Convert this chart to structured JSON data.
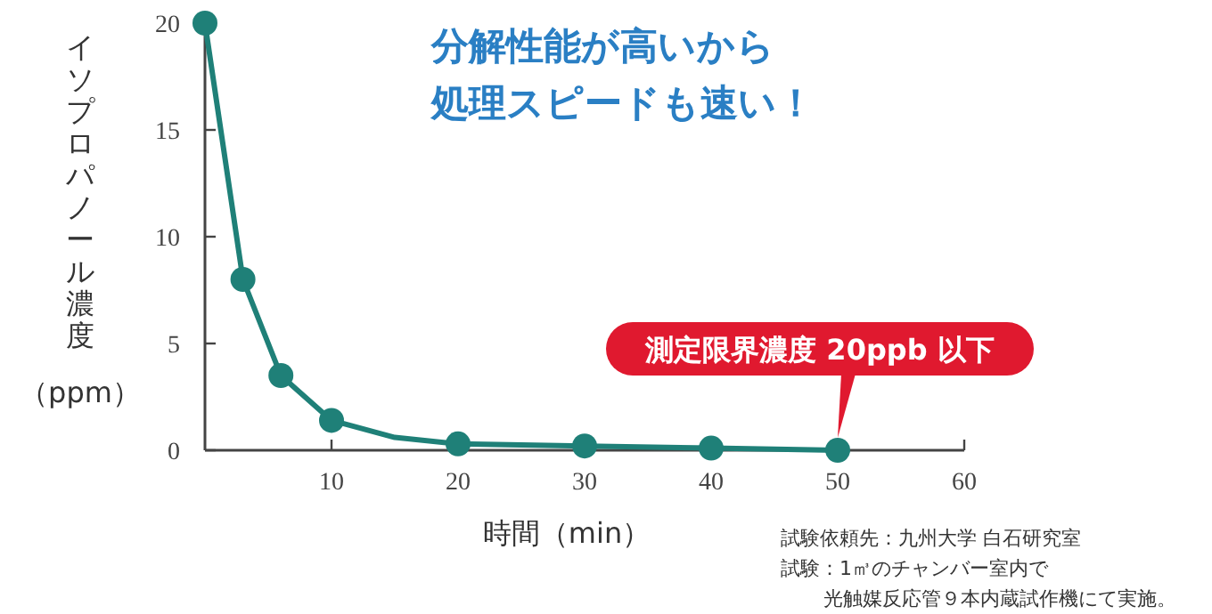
{
  "chart_data": {
    "type": "line",
    "title": "分解性能が高いから",
    "subtitle": "処理スピードも速い！",
    "xlabel": "時間（min）",
    "ylabel": "イソプロパノール濃度（ppm）",
    "xlim": [
      0,
      60
    ],
    "xticks": [
      10,
      20,
      30,
      40,
      50,
      60
    ],
    "ylim": [
      0,
      20
    ],
    "yticks": [
      0,
      5,
      10,
      15,
      20
    ],
    "grid": false,
    "series": [
      {
        "color": "#1f8078",
        "marker": "none",
        "x": [
          0,
          3,
          6,
          10,
          15,
          20,
          30,
          40,
          50
        ],
        "values": [
          20,
          8,
          3.5,
          1.4,
          0.6,
          0.3,
          0.2,
          0.1,
          0
        ]
      },
      {
        "type": "scatter",
        "color": "#1f8078",
        "marker": "circle",
        "x": [
          0,
          3,
          6,
          10,
          20,
          30,
          40,
          50
        ],
        "values": [
          20,
          8,
          3.5,
          1.4,
          0.3,
          0.2,
          0.1,
          0
        ]
      }
    ],
    "annotations": [
      {
        "text": "測定限界濃度 20ppb 以下",
        "x": 50,
        "y": 0
      },
      "試験依頼先：九州大学 白石研究室",
      "試験：1㎥のチャンバー室内で",
      "光触媒反応管９本内蔵試作機にて実施。"
    ]
  }
}
